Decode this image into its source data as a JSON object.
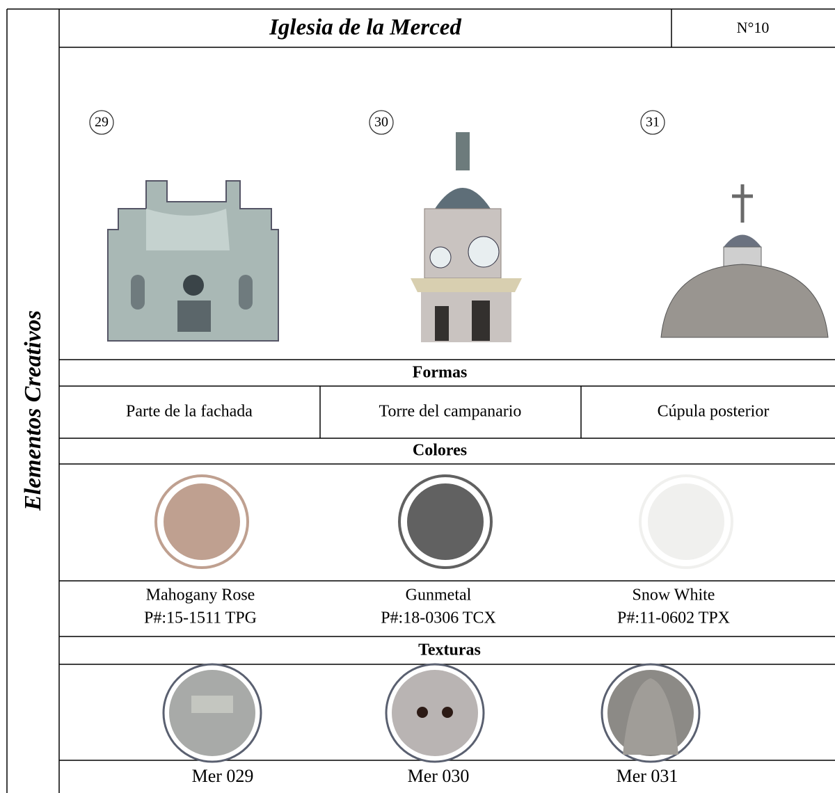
{
  "header": {
    "title": "Iglesia de la Merced",
    "number": "N°10"
  },
  "side_label": "Elementos Creativos",
  "images": [
    {
      "number": "29"
    },
    {
      "number": "30"
    },
    {
      "number": "31"
    }
  ],
  "formas": {
    "title": "Formas",
    "items": [
      "Parte de la fachada",
      "Torre del campanario",
      "Cúpula posterior"
    ]
  },
  "colores": {
    "title": "Colores",
    "items": [
      {
        "name": "Mahogany Rose",
        "code": "P#:15-1511 TPG",
        "swatch": "#bfa090"
      },
      {
        "name": "Gunmetal",
        "code": "P#:18-0306 TCX",
        "swatch": "#616161"
      },
      {
        "name": "Snow White",
        "code": "P#:11-0602 TPX",
        "swatch": "#f0f0ee"
      }
    ]
  },
  "texturas": {
    "title": "Texturas",
    "items": [
      "Mer 029",
      "Mer 030",
      "Mer 031"
    ]
  }
}
